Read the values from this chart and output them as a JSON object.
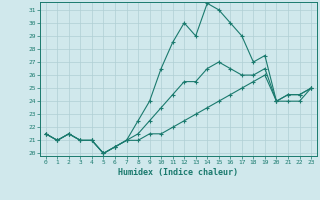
{
  "xlabel": "Humidex (Indice chaleur)",
  "hours": [
    0,
    1,
    2,
    3,
    4,
    5,
    6,
    7,
    8,
    9,
    10,
    11,
    12,
    13,
    14,
    15,
    16,
    17,
    18,
    19,
    20,
    21,
    22,
    23
  ],
  "line_max": [
    21.5,
    21.0,
    21.5,
    21.0,
    21.0,
    20.0,
    20.5,
    21.0,
    22.5,
    24.0,
    26.5,
    28.5,
    30.0,
    29.0,
    31.5,
    31.0,
    30.0,
    29.0,
    27.0,
    27.5,
    24.0,
    24.5,
    24.5,
    25.0
  ],
  "line_min": [
    21.5,
    21.0,
    21.5,
    21.0,
    21.0,
    20.0,
    20.5,
    21.0,
    21.0,
    21.5,
    21.5,
    22.0,
    22.5,
    23.0,
    23.5,
    24.0,
    24.5,
    25.0,
    25.5,
    26.0,
    24.0,
    24.0,
    24.0,
    25.0
  ],
  "line_avg": [
    21.5,
    21.0,
    21.5,
    21.0,
    21.0,
    20.0,
    20.5,
    21.0,
    21.5,
    22.5,
    23.5,
    24.5,
    25.5,
    25.5,
    26.5,
    27.0,
    26.5,
    26.0,
    26.0,
    26.5,
    24.0,
    24.5,
    24.5,
    25.0
  ],
  "color": "#1a7a6e",
  "background": "#d0e8ec",
  "grid_color": "#b0cfd4",
  "ylim_min": 20,
  "ylim_max": 31.6,
  "yticks": [
    20,
    21,
    22,
    23,
    24,
    25,
    26,
    27,
    28,
    29,
    30,
    31
  ],
  "figsize": [
    3.2,
    2.0
  ],
  "dpi": 100
}
